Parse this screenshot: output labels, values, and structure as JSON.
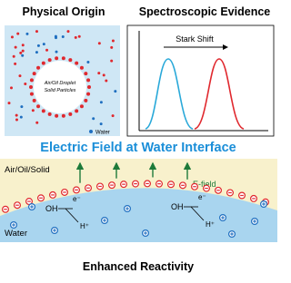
{
  "header": {
    "left_title": "Physical Origin",
    "right_title": "Spectroscopic Evidence"
  },
  "droplet": {
    "label_lines": [
      "Air/Oil Droplet",
      "Solid Particles"
    ],
    "legend": "Water"
  },
  "spectrum": {
    "label": "Stark Shift"
  },
  "banner": "Electric Field at Water Interface",
  "interface": {
    "top_phase": "Air/Oil/Solid",
    "field": "E-field",
    "bottom_phase": "Water",
    "reactions": [
      {
        "oh": "OH",
        "e": "e⁻",
        "h": "H⁺"
      },
      {
        "oh": "OH",
        "e": "e⁻",
        "h": "H⁺"
      }
    ]
  },
  "footer": "Enhanced Reactivity"
}
